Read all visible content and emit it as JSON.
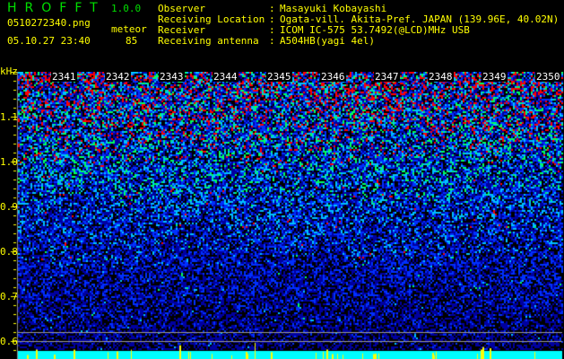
{
  "header": {
    "app_title": "HROFFT",
    "version": "1.0.0",
    "filename": "0510272340.png",
    "datetime": "05.10.27 23:40",
    "meteor_label": "meteor",
    "meteor_count": "85"
  },
  "info": [
    {
      "key": "Observer",
      "value": "Masayuki Kobayashi"
    },
    {
      "key": "Receiving Location",
      "value": "Ogata-vill. Akita-Pref. JAPAN (139.96E, 40.02N)"
    },
    {
      "key": "Receiver",
      "value": "ICOM IC-575 53.7492(@LCD)MHz USB"
    },
    {
      "key": "Receiving antenna",
      "value": "A504HB(yagi 4el)"
    }
  ],
  "colors": {
    "text": "#ffff00",
    "title": "#00e000",
    "level_bar": "#00ffff",
    "spike": "#ffff00"
  },
  "chart_data": {
    "type": "heatmap",
    "ylabel": "kHz",
    "y_ticks": [
      "1.1",
      "1.0",
      "0.9",
      "0.8",
      "0.7",
      "0.6"
    ],
    "ylim": [
      0.58,
      1.2
    ],
    "x_ticks": [
      "2341",
      "2342",
      "2343",
      "2344",
      "2345",
      "2346",
      "2347",
      "2348",
      "2349",
      "2350"
    ],
    "colormap": [
      "#000000",
      "#0000a0",
      "#0030ff",
      "#00c0ff",
      "#00ff60",
      "#ff0000"
    ]
  }
}
